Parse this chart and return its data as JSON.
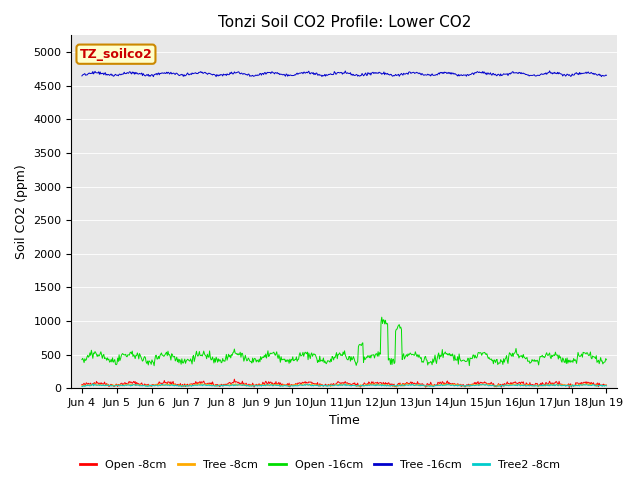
{
  "title": "Tonzi Soil CO2 Profile: Lower CO2",
  "xlabel": "Time",
  "ylabel": "Soil CO2 (ppm)",
  "ylim": [
    0,
    5250
  ],
  "yticks": [
    0,
    500,
    1000,
    1500,
    2000,
    2500,
    3000,
    3500,
    4000,
    4500,
    5000
  ],
  "background_color": "#e8e8e8",
  "legend_label": "TZ_soilco2",
  "legend_text_color": "#cc0000",
  "legend_box_bg": "#ffffcc",
  "legend_box_edge": "#cc8800",
  "xtick_labels": [
    "Jun 4",
    "Jun 5",
    "Jun 6",
    "Jun 7",
    "Jun 8",
    "Jun 9",
    "Jun 10",
    "Jun 11",
    "Jun 12",
    "Jun 13",
    "Jun 14",
    "Jun 15",
    "Jun 16",
    "Jun 17",
    "Jun 18",
    "Jun 19"
  ],
  "series": {
    "open_8cm": {
      "label": "Open -8cm",
      "color": "#ff0000"
    },
    "tree_8cm": {
      "label": "Tree -8cm",
      "color": "#ffaa00"
    },
    "open_16cm": {
      "label": "Open -16cm",
      "color": "#00dd00"
    },
    "tree_16cm": {
      "label": "Tree -16cm",
      "color": "#0000cc"
    },
    "tree2_8cm": {
      "label": "Tree2 -8cm",
      "color": "#00cccc"
    }
  },
  "title_fontsize": 11,
  "axis_label_fontsize": 9,
  "tick_fontsize": 8
}
